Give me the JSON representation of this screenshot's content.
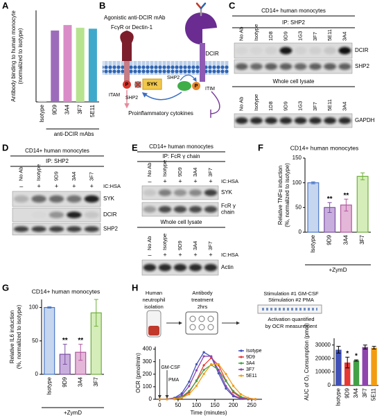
{
  "panel_letters": [
    "A",
    "B",
    "C",
    "D",
    "E",
    "F",
    "G",
    "H"
  ],
  "chart_data": [
    {
      "type": "bar",
      "y_label": [
        "Antibody binding to human monocyte",
        "(normalized to isotype)"
      ],
      "categories": [
        "Isotype",
        "9D9",
        "3A4",
        "3F7",
        "5E11"
      ],
      "values": [
        1,
        78,
        84,
        81,
        80
      ],
      "colors": [
        "#cccccc",
        "#9c6cbb",
        "#d98cc7",
        "#b7e38f",
        "#3fa9cc"
      ],
      "ylim": [
        0,
        100
      ],
      "group_label": "anti-DCIR mAbs"
    },
    {
      "type": "bar",
      "title": "CD14+ human monocytes",
      "y_label": [
        "Relative TNFα induction",
        "(%, normalized to isotype)"
      ],
      "categories": [
        "Isotype",
        "9D9",
        "3A4",
        "3F7"
      ],
      "values": [
        100,
        50,
        55,
        113
      ],
      "errors": [
        2,
        10,
        12,
        7
      ],
      "annotations": [
        null,
        "**",
        "**",
        null
      ],
      "colors": [
        "#c6d6ef",
        "#c8aedd",
        "#e4b7d8",
        "#d4edb9"
      ],
      "edge_colors": [
        "#4a78c8",
        "#7a4fa0",
        "#b0579e",
        "#6fae3a"
      ],
      "ylim": [
        0,
        150
      ],
      "yticks": [
        0,
        50,
        100,
        150
      ],
      "x_label": "+ZymD"
    },
    {
      "type": "bar",
      "title": "CD14+ human monocytes",
      "y_label": [
        "Relative IL6 induction",
        "(%, normalized to isotype)"
      ],
      "categories": [
        "Isotype",
        "9D9",
        "3A4",
        "3F7"
      ],
      "values": [
        100,
        30,
        33,
        92
      ],
      "errors": [
        1,
        15,
        12,
        20
      ],
      "annotations": [
        null,
        "**",
        "**",
        null
      ],
      "colors": [
        "#c6d6ef",
        "#c8aedd",
        "#e4b7d8",
        "#d4edb9"
      ],
      "edge_colors": [
        "#4a78c8",
        "#7a4fa0",
        "#b0579e",
        "#6fae3a"
      ],
      "ylim": [
        0,
        112
      ],
      "yticks": [
        0,
        50,
        100
      ],
      "x_label": "+ZymD"
    },
    {
      "type": "line",
      "y_label": "OCR (pmol/min)",
      "x_label": "Time (minutes)",
      "x": [
        0,
        20,
        40,
        60,
        80,
        100,
        120,
        140,
        160,
        180,
        200,
        220,
        240,
        260
      ],
      "series": [
        {
          "name": "Isotype",
          "color": "#3f51b5",
          "values": [
            0,
            2,
            11,
            47,
            140,
            279,
            375,
            340,
            207,
            86,
            24,
            4,
            1,
            0
          ]
        },
        {
          "name": "9D9",
          "color": "#e53935",
          "values": [
            0,
            0,
            2,
            14,
            56,
            150,
            271,
            330,
            271,
            150,
            56,
            14,
            2,
            0
          ]
        },
        {
          "name": "3A4",
          "color": "#43a047",
          "values": [
            0,
            0,
            5,
            21,
            65,
            145,
            234,
            275,
            234,
            145,
            65,
            21,
            5,
            1
          ]
        },
        {
          "name": "3F7",
          "color": "#8e44ad",
          "values": [
            0,
            1,
            7,
            32,
            105,
            231,
            343,
            343,
            231,
            105,
            32,
            7,
            1,
            0
          ]
        },
        {
          "name": "5E11",
          "color": "#f39c12",
          "values": [
            0,
            0,
            2,
            11,
            41,
            107,
            202,
            279,
            279,
            202,
            107,
            41,
            11,
            2
          ]
        }
      ],
      "xlim": [
        -12,
        278
      ],
      "ylim": [
        0,
        420
      ],
      "xticks": [
        0,
        50,
        100,
        150,
        200,
        250
      ],
      "yticks": [
        0,
        100,
        200,
        300,
        400
      ],
      "annotations": [
        "GM-CSF",
        "PMA"
      ],
      "legend": "upper right"
    },
    {
      "type": "bar",
      "y_label": [
        "AUC of O₂ Consumption (pmol)"
      ],
      "categories": [
        "Isotype",
        "9D9",
        "3A4",
        "3F7",
        "5E11"
      ],
      "values": [
        26500,
        17000,
        18500,
        28500,
        28000
      ],
      "errors": [
        2500,
        4000,
        500,
        1500,
        1000
      ],
      "annotations": [
        null,
        "*",
        "*",
        null,
        null
      ],
      "colors": [
        "#3f51b5",
        "#e53935",
        "#43a047",
        "#8e44ad",
        "#f39c12"
      ],
      "ylim": [
        0,
        35000
      ],
      "yticks": [
        0,
        10000,
        20000,
        30000
      ]
    }
  ],
  "diagram_b": {
    "antibody": "Agonistic anti-DCIR mAb",
    "fcr": "FcγR or Dectin-1",
    "dcir": "DCIR",
    "itam": "ITAM",
    "itim": "ITIM",
    "syk": "SYK",
    "shp2_inactive": "SHP2",
    "shp2_active": "SHP2",
    "phospho": [
      "P",
      "P"
    ],
    "output": "Proinflammatory cytokines"
  },
  "blot_c": {
    "title": "CD14+ human monocytes",
    "ip": "IP: SHP2",
    "lanes": [
      "No Ab",
      "Isotype",
      "1D8",
      "9D9",
      "1G3",
      "3F7",
      "5E11",
      "3A4"
    ],
    "rows": [
      [
        "DCIR"
      ],
      [
        "SHP2"
      ]
    ],
    "lysate_title": "Whole cell lysate",
    "lysate_lanes": [
      "No Ab",
      "Isotype",
      "1D8",
      "9D9",
      "1G3",
      "3F7",
      "5E11",
      "3A4"
    ],
    "lysate_rows": [
      [
        "GAPDH"
      ]
    ]
  },
  "blot_d": {
    "title": "CD14+ human monocytes",
    "ip": "IP: SHP2",
    "lanes": [
      "No Ab",
      "Isotype",
      "9D9",
      "3A4",
      "3F7"
    ],
    "treatment": [
      "–",
      "+",
      "+",
      "+",
      "+"
    ],
    "treatment_label": "IC:HSA",
    "rows": [
      [
        "SYK"
      ],
      [
        "DCIR"
      ],
      [
        "SHP2"
      ]
    ]
  },
  "blot_e": {
    "title": "CD14+ human monocytes",
    "ip": "IP: FcR γ chain",
    "lanes": [
      "No Ab",
      "Isotype",
      "9D9",
      "3A4",
      "3F7"
    ],
    "treatment": [
      "–",
      "+",
      "+",
      "+",
      "+"
    ],
    "treatment_label": "IC:HSA",
    "rows": [
      [
        "SYK"
      ],
      [
        "FcR γ",
        "chain"
      ]
    ],
    "lysate_title": "Whole cell lysate",
    "lysate_lanes": [
      "No Ab",
      "Isotype",
      "9D9",
      "3A4",
      "3F7"
    ],
    "lysate_treatment": [
      "–",
      "+",
      "+",
      "+",
      "+"
    ],
    "lysate_treatment_label": "IC:HSA",
    "lysate_rows": [
      [
        "Actin"
      ]
    ]
  },
  "schematic_h": {
    "steps": [
      [
        "Human",
        "neutrophil",
        "isolation"
      ],
      [
        "Antibody",
        "treatment",
        "2hrs"
      ],
      [
        "Stimulation #1 GM-CSF",
        "Stimulation #2 PMA"
      ],
      [
        "Activation quantified",
        "by OCR measurement"
      ]
    ]
  }
}
